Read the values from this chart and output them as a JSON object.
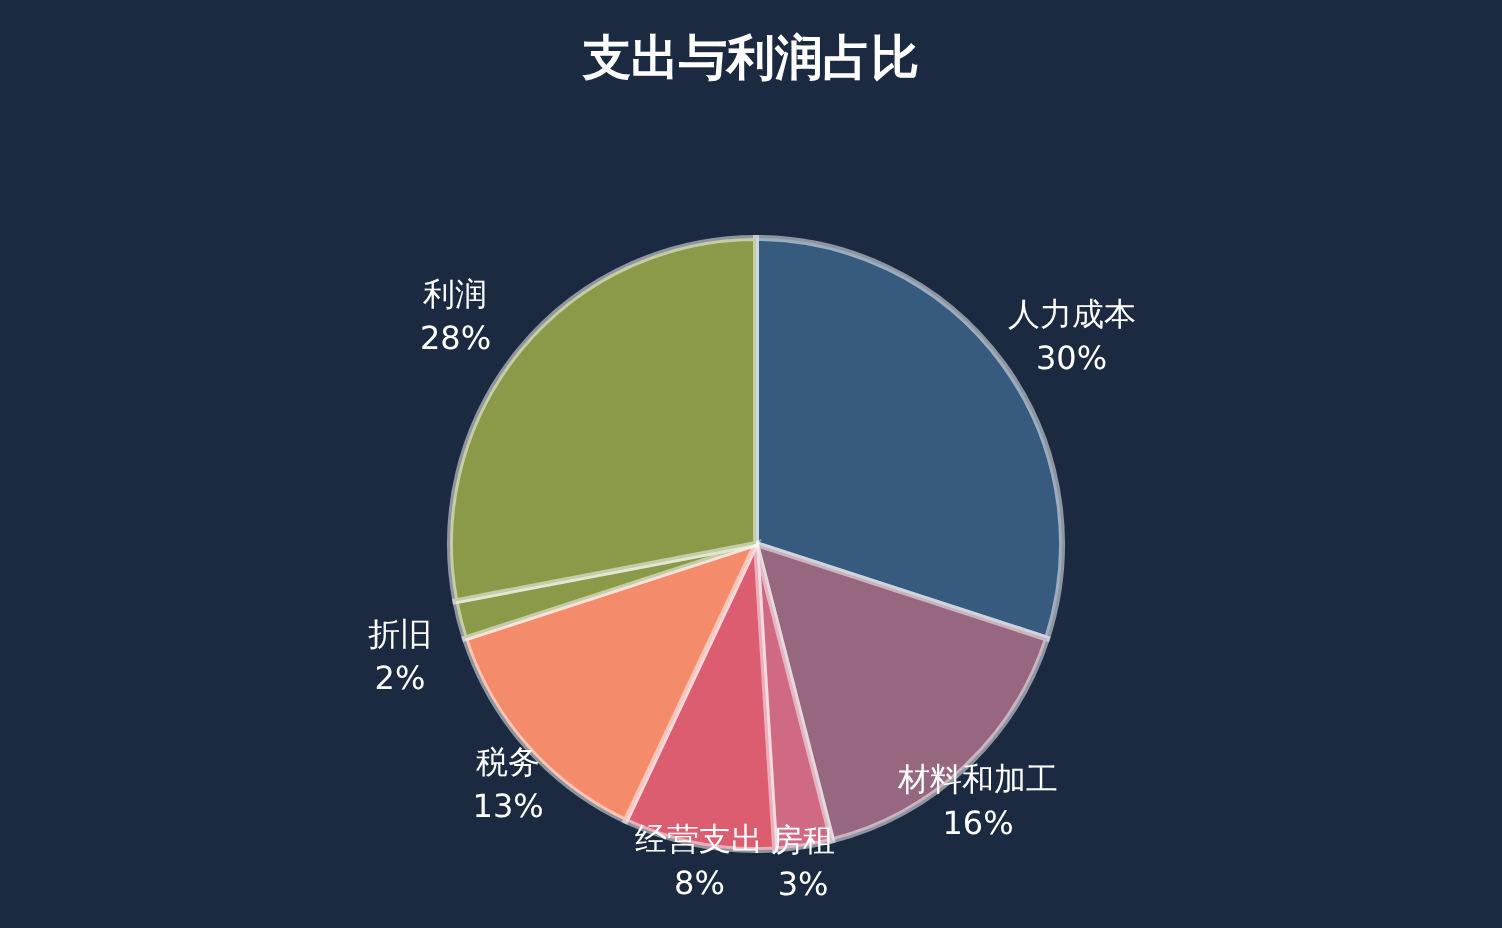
{
  "chart_data": {
    "type": "pie",
    "title": "支出与利润占比",
    "categories": [
      "人力成本",
      "材料和加工",
      "房租",
      "经营支出",
      "税务",
      "折旧",
      "利润"
    ],
    "values": [
      30,
      16,
      3,
      8,
      13,
      2,
      28
    ],
    "value_labels": [
      "30%",
      "16%",
      "3%",
      "8%",
      "13%",
      "2%",
      "28%"
    ],
    "colors": [
      "#375a7f",
      "#96677f",
      "#cf6a82",
      "#dc5c70",
      "#f48b6a",
      "#8a9a48",
      "#8a9a48"
    ],
    "legend": false
  }
}
